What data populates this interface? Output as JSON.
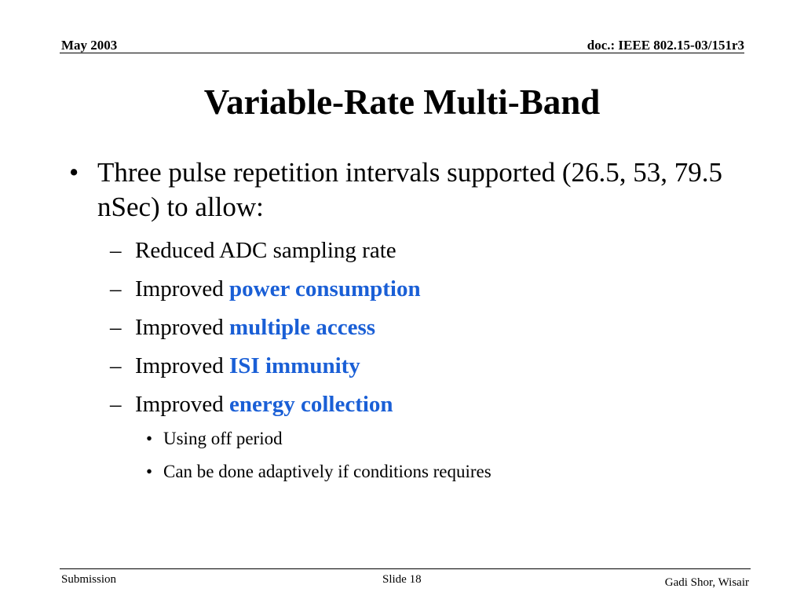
{
  "header": {
    "date": "May 2003",
    "doc_id": "doc.: IEEE 802.15-03/151r3"
  },
  "title": "Variable-Rate Multi-Band",
  "content": {
    "main_bullet": {
      "marker": "•",
      "text": "Three pulse repetition intervals supported (26.5, 53, 79.5 nSec) to allow:"
    },
    "sub_marker": "–",
    "sub_items": [
      {
        "prefix": "Reduced ADC sampling rate",
        "highlight": ""
      },
      {
        "prefix": "Improved ",
        "highlight": "power consumption"
      },
      {
        "prefix": "Improved ",
        "highlight": "multiple access"
      },
      {
        "prefix": "Improved ",
        "highlight": "ISI immunity"
      },
      {
        "prefix": "Improved ",
        "highlight": "energy collection"
      }
    ],
    "subsub_marker": "•",
    "subsub_items": [
      "Using off period",
      "Can be done adaptively if conditions requires"
    ]
  },
  "footer": {
    "submission": "Submission",
    "slide": "Slide 18",
    "author": "Gadi Shor, Wisair"
  },
  "colors": {
    "highlight": "#1a5fd6",
    "text": "#000000",
    "background": "#ffffff"
  }
}
